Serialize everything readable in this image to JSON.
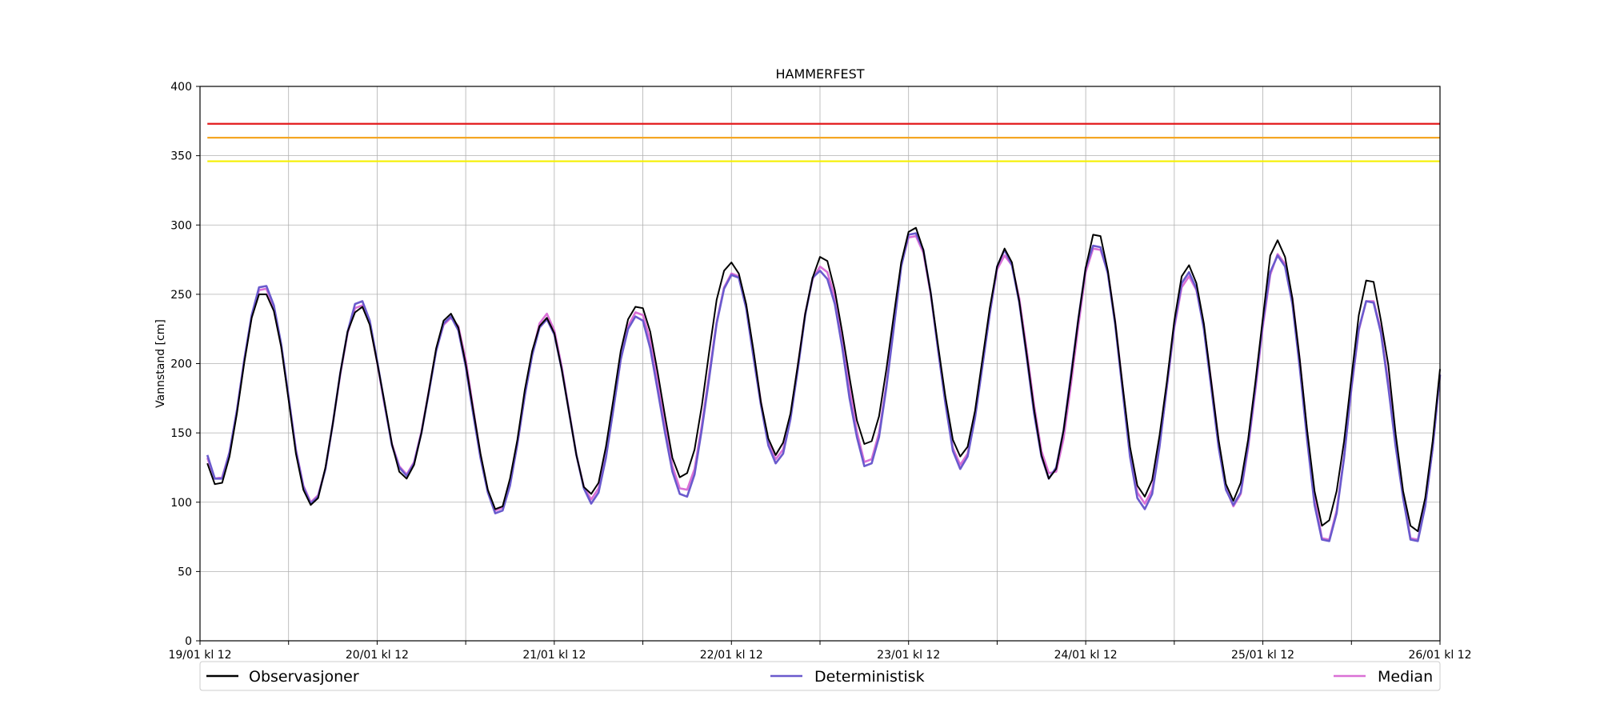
{
  "chart_data": {
    "type": "line",
    "title": "HAMMERFEST",
    "xlabel": "",
    "ylabel": "Vannstand [cm]",
    "ylim": [
      0,
      400
    ],
    "yticks": [
      0,
      50,
      100,
      150,
      200,
      250,
      300,
      350,
      400
    ],
    "xlim": [
      0,
      168
    ],
    "x_ticks": [
      {
        "x": 0,
        "label": "19/01 kl 12"
      },
      {
        "x": 24,
        "label": "20/01 kl 12"
      },
      {
        "x": 48,
        "label": "21/01 kl 12"
      },
      {
        "x": 72,
        "label": "22/01 kl 12"
      },
      {
        "x": 96,
        "label": "23/01 kl 12"
      },
      {
        "x": 120,
        "label": "24/01 kl 12"
      },
      {
        "x": 144,
        "label": "25/01 kl 12"
      },
      {
        "x": 168,
        "label": "26/01 kl 12"
      }
    ],
    "x_minor_ticks": [
      12,
      36,
      60,
      84,
      108,
      132,
      156
    ],
    "grid": true,
    "threshold_lines": [
      {
        "value": 373,
        "color": "#e31a1c"
      },
      {
        "value": 363,
        "color": "#f5a623"
      },
      {
        "value": 346,
        "color": "#f5f000"
      }
    ],
    "legend": {
      "placement": "bottom",
      "entries": [
        "Observasjoner",
        "Deterministisk",
        "Median"
      ]
    },
    "series": [
      {
        "name": "Observasjoner",
        "color": "#000000",
        "x": [
          1,
          2,
          3,
          4,
          5,
          6,
          7,
          8,
          9,
          10,
          11,
          12,
          13,
          14,
          15,
          16,
          17,
          18,
          19,
          20,
          21,
          22,
          23,
          24,
          25,
          26,
          27,
          28,
          29,
          30,
          31,
          32,
          33,
          34,
          35,
          36,
          37,
          38,
          39,
          40,
          41,
          42,
          43,
          44,
          45,
          46,
          47,
          48,
          49,
          50,
          51,
          52,
          53,
          54,
          55,
          56,
          57,
          58,
          59,
          60,
          61,
          62,
          63,
          64,
          65,
          66,
          67,
          68,
          69,
          70,
          71,
          72,
          73,
          74,
          75,
          76,
          77,
          78,
          79,
          80,
          81,
          82,
          83,
          84,
          85,
          86,
          87,
          88,
          89,
          90,
          91,
          92,
          93,
          94,
          95,
          96,
          97,
          98,
          99,
          100,
          101,
          102,
          103,
          104,
          105,
          106,
          107,
          108,
          109,
          110,
          111,
          112,
          113,
          114,
          115,
          116,
          117,
          118,
          119,
          120,
          121,
          122,
          123,
          124,
          125,
          126,
          127,
          128,
          129,
          130,
          131,
          132,
          133,
          134,
          135,
          136,
          137,
          138,
          139,
          140,
          141,
          142,
          143,
          144,
          145,
          146,
          147,
          148,
          149,
          150,
          151,
          152,
          153,
          154,
          155,
          156,
          157,
          158,
          159,
          160,
          161,
          162,
          163,
          164,
          165,
          166,
          167,
          168
        ],
        "y": [
          128,
          113,
          114,
          133,
          164,
          201,
          233,
          250,
          250,
          238,
          212,
          174,
          135,
          109,
          98,
          103,
          125,
          157,
          193,
          223,
          237,
          241,
          228,
          201,
          172,
          142,
          122,
          117,
          127,
          150,
          180,
          211,
          231,
          236,
          226,
          200,
          167,
          135,
          109,
          95,
          97,
          117,
          145,
          181,
          209,
          227,
          233,
          222,
          196,
          165,
          134,
          111,
          106,
          114,
          140,
          174,
          209,
          232,
          241,
          240,
          223,
          194,
          162,
          132,
          118,
          121,
          138,
          170,
          209,
          246,
          267,
          273,
          265,
          243,
          209,
          172,
          146,
          134,
          143,
          164,
          199,
          236,
          262,
          277,
          274,
          253,
          223,
          190,
          159,
          142,
          144,
          162,
          196,
          235,
          273,
          295,
          298,
          282,
          251,
          213,
          176,
          145,
          133,
          140,
          166,
          203,
          240,
          270,
          283,
          273,
          245,
          207,
          167,
          134,
          117,
          124,
          152,
          190,
          232,
          269,
          293,
          292,
          267,
          230,
          184,
          140,
          112,
          104,
          116,
          148,
          187,
          231,
          263,
          271,
          258,
          229,
          187,
          145,
          113,
          101,
          114,
          145,
          187,
          233,
          278,
          289,
          277,
          247,
          203,
          152,
          108,
          83,
          87,
          108,
          144,
          190,
          235,
          260,
          259,
          231,
          199,
          149,
          108,
          83,
          79,
          103,
          144,
          196
        ]
      },
      {
        "name": "Deterministisk",
        "color": "#6a5acd",
        "x": [
          1,
          2,
          3,
          4,
          5,
          6,
          7,
          8,
          9,
          10,
          11,
          12,
          13,
          14,
          15,
          16,
          17,
          18,
          19,
          20,
          21,
          22,
          23,
          24,
          25,
          26,
          27,
          28,
          29,
          30,
          31,
          32,
          33,
          34,
          35,
          36,
          37,
          38,
          39,
          40,
          41,
          42,
          43,
          44,
          45,
          46,
          47,
          48,
          49,
          50,
          51,
          52,
          53,
          54,
          55,
          56,
          57,
          58,
          59,
          60,
          61,
          62,
          63,
          64,
          65,
          66,
          67,
          68,
          69,
          70,
          71,
          72,
          73,
          74,
          75,
          76,
          77,
          78,
          79,
          80,
          81,
          82,
          83,
          84,
          85,
          86,
          87,
          88,
          89,
          90,
          91,
          92,
          93,
          94,
          95,
          96,
          97,
          98,
          99,
          100,
          101,
          102,
          103,
          104,
          105,
          106,
          107,
          108,
          109,
          110,
          111,
          112,
          113,
          114,
          115,
          116,
          117,
          118,
          119,
          120,
          121,
          122,
          123,
          124,
          125,
          126,
          127,
          128,
          129,
          130,
          131,
          132,
          133,
          134,
          135,
          136,
          137,
          138,
          139,
          140,
          141,
          142,
          143,
          144,
          145,
          146,
          147,
          148,
          149,
          150,
          151,
          152,
          153,
          154,
          155,
          156,
          157,
          158,
          159,
          160,
          161,
          162,
          163,
          164,
          165,
          166,
          167,
          168
        ],
        "y": [
          134,
          117,
          117,
          136,
          166,
          203,
          235,
          255,
          256,
          242,
          214,
          176,
          137,
          111,
          99,
          104,
          124,
          157,
          193,
          223,
          243,
          245,
          231,
          202,
          171,
          141,
          125,
          119,
          128,
          150,
          179,
          209,
          229,
          234,
          224,
          198,
          164,
          132,
          107,
          92,
          94,
          112,
          142,
          177,
          206,
          226,
          232,
          221,
          196,
          165,
          134,
          110,
          99,
          107,
          132,
          167,
          203,
          225,
          234,
          231,
          211,
          181,
          150,
          122,
          106,
          104,
          120,
          153,
          190,
          229,
          254,
          264,
          262,
          240,
          204,
          170,
          141,
          128,
          135,
          160,
          196,
          235,
          262,
          267,
          261,
          243,
          212,
          175,
          147,
          126,
          128,
          147,
          183,
          226,
          270,
          293,
          294,
          282,
          251,
          210,
          171,
          137,
          124,
          133,
          161,
          198,
          236,
          270,
          282,
          271,
          244,
          205,
          164,
          133,
          117,
          125,
          152,
          192,
          232,
          269,
          285,
          284,
          265,
          228,
          180,
          133,
          103,
          95,
          106,
          140,
          184,
          228,
          258,
          266,
          254,
          225,
          183,
          140,
          109,
          98,
          107,
          141,
          184,
          230,
          266,
          278,
          270,
          243,
          197,
          145,
          98,
          73,
          72,
          92,
          132,
          183,
          225,
          245,
          244,
          222,
          183,
          140,
          103,
          73,
          72,
          97,
          139,
          192
        ]
      },
      {
        "name": "Median",
        "color": "#da70d6",
        "x": [
          1,
          2,
          3,
          4,
          5,
          6,
          7,
          8,
          9,
          10,
          11,
          12,
          13,
          14,
          15,
          16,
          17,
          18,
          19,
          20,
          21,
          22,
          23,
          24,
          25,
          26,
          27,
          28,
          29,
          30,
          31,
          32,
          33,
          34,
          35,
          36,
          37,
          38,
          39,
          40,
          41,
          42,
          43,
          44,
          45,
          46,
          47,
          48,
          49,
          50,
          51,
          52,
          53,
          54,
          55,
          56,
          57,
          58,
          59,
          60,
          61,
          62,
          63,
          64,
          65,
          66,
          67,
          68,
          69,
          70,
          71,
          72,
          73,
          74,
          75,
          76,
          77,
          78,
          79,
          80,
          81,
          82,
          83,
          84,
          85,
          86,
          87,
          88,
          89,
          90,
          91,
          92,
          93,
          94,
          95,
          96,
          97,
          98,
          99,
          100,
          101,
          102,
          103,
          104,
          105,
          106,
          107,
          108,
          109,
          110,
          111,
          112,
          113,
          114,
          115,
          116,
          117,
          118,
          119,
          120,
          121,
          122,
          123,
          124,
          125,
          126,
          127,
          128,
          129,
          130,
          131,
          132,
          133,
          134,
          135,
          136,
          137,
          138,
          139,
          140,
          141,
          142,
          143,
          144,
          145,
          146,
          147,
          148,
          149,
          150,
          151,
          152,
          153,
          154,
          155,
          156,
          157,
          158,
          159,
          160,
          161,
          162,
          163,
          164,
          165,
          166,
          167,
          168
        ],
        "y": [
          132,
          117,
          118,
          136,
          166,
          203,
          234,
          253,
          254,
          240,
          213,
          176,
          138,
          112,
          100,
          105,
          124,
          157,
          192,
          222,
          240,
          242,
          229,
          201,
          170,
          142,
          126,
          120,
          129,
          151,
          180,
          210,
          228,
          233,
          227,
          203,
          168,
          134,
          108,
          94,
          96,
          113,
          142,
          177,
          207,
          229,
          236,
          224,
          198,
          166,
          134,
          111,
          102,
          110,
          133,
          168,
          203,
          227,
          237,
          235,
          217,
          187,
          155,
          126,
          110,
          109,
          124,
          156,
          193,
          230,
          255,
          265,
          263,
          242,
          207,
          172,
          143,
          131,
          138,
          162,
          198,
          236,
          261,
          270,
          266,
          248,
          218,
          182,
          151,
          129,
          131,
          150,
          185,
          227,
          271,
          291,
          292,
          280,
          250,
          210,
          172,
          139,
          127,
          135,
          162,
          199,
          236,
          268,
          278,
          271,
          247,
          210,
          170,
          137,
          121,
          122,
          146,
          185,
          227,
          266,
          283,
          282,
          266,
          230,
          183,
          137,
          107,
          99,
          109,
          141,
          183,
          226,
          255,
          263,
          253,
          227,
          187,
          144,
          110,
          97,
          106,
          139,
          181,
          227,
          264,
          279,
          272,
          247,
          202,
          150,
          103,
          74,
          73,
          94,
          133,
          182,
          224,
          245,
          245,
          224,
          186,
          143,
          105,
          74,
          73,
          98,
          139,
          192
        ]
      }
    ]
  }
}
